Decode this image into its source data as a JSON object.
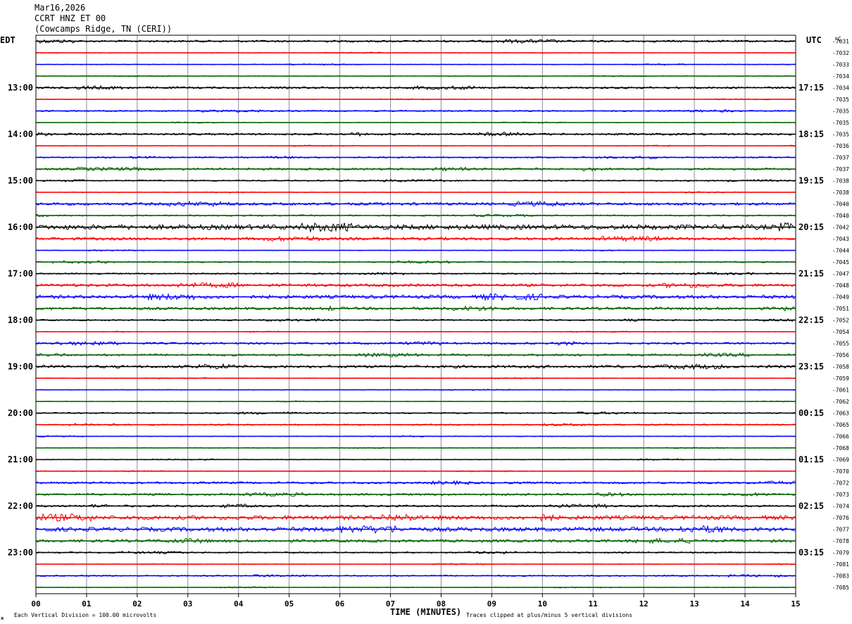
{
  "header": {
    "date": "Mar16,2026",
    "station": "CCRT HNZ ET 00",
    "location": "(Cowcamps Ridge, TN (CERI))"
  },
  "axes": {
    "left_zone": "EDT",
    "right_zone": "UTC",
    "right_unit": "ºC"
  },
  "footer": {
    "scale_note": "Each Vertical Division =  100.00 microvolts",
    "xlabel": "TIME (MINUTES)",
    "clip_note": "Traces clipped at plus/minus 5 vertical divisions",
    "corner_mark": "ж"
  },
  "chart_data": {
    "type": "line",
    "xlabel": "TIME (MINUTES)",
    "x_ticks": [
      "00",
      "01",
      "02",
      "03",
      "04",
      "05",
      "06",
      "07",
      "08",
      "09",
      "10",
      "11",
      "12",
      "13",
      "14",
      "15"
    ],
    "xlim": [
      0,
      15
    ],
    "trace_colors": [
      "#000000",
      "#ff0000",
      "#0000ff",
      "#006400"
    ],
    "left_hour_labels": [
      "13:00",
      "14:00",
      "15:00",
      "16:00",
      "17:00",
      "18:00",
      "19:00",
      "20:00",
      "21:00",
      "22:00",
      "23:00"
    ],
    "right_hour_labels": [
      "17:15",
      "18:15",
      "19:15",
      "20:15",
      "21:15",
      "22:15",
      "23:15",
      "00:15",
      "01:15",
      "02:15",
      "03:15"
    ],
    "first_labeled_row": 4,
    "row_values": [
      "-7031",
      "-7032",
      "-7033",
      "-7034",
      "-7034",
      "-7035",
      "-7035",
      "-7035",
      "-7035",
      "-7036",
      "-7037",
      "-7037",
      "-7038",
      "-7038",
      "-7040",
      "-7040",
      "-7042",
      "-7043",
      "-7044",
      "-7045",
      "-7047",
      "-7048",
      "-7049",
      "-7051",
      "-7052",
      "-7054",
      "-7055",
      "-7056",
      "-7058",
      "-7059",
      "-7061",
      "-7062",
      "-7063",
      "-7065",
      "-7066",
      "-7068",
      "-7069",
      "-7070",
      "-7072",
      "-7073",
      "-7074",
      "-7076",
      "-7077",
      "-7078",
      "-7079",
      "-7081",
      "-7083",
      "-7085"
    ],
    "row_noise": [
      3,
      1,
      1,
      1,
      3,
      1,
      2,
      1,
      3,
      1,
      2,
      3,
      2,
      1,
      4,
      2,
      7,
      4,
      1,
      2,
      2,
      4,
      5,
      4,
      2,
      1,
      3,
      3,
      4,
      1,
      1,
      1,
      2,
      2,
      1,
      1,
      1,
      1,
      3,
      3,
      3,
      6,
      6,
      4,
      2,
      1,
      2,
      1
    ]
  }
}
